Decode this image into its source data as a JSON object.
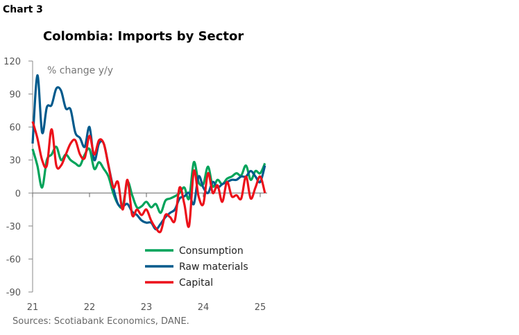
{
  "header": {
    "chart_label": "Chart 3"
  },
  "footer": {
    "source": "Sources: Scotiabank Economics, DANE."
  },
  "chart_data": {
    "type": "line",
    "title": "Colombia: Imports by Sector",
    "ylabel": "% change y/y",
    "xlabel": "",
    "ylim": [
      -90,
      120
    ],
    "yticks": [
      120,
      90,
      60,
      30,
      0,
      -30,
      -60,
      -90
    ],
    "ytick_labels": [
      "120",
      "90",
      "60",
      "30",
      "0",
      "-30",
      "-60",
      "-90"
    ],
    "xticks": [
      "21",
      "22",
      "23",
      "24",
      "25"
    ],
    "x_start": "Jan 2021",
    "x_frequency": "monthly",
    "legend_position": "bottom-center",
    "series": [
      {
        "name": "Consumption",
        "color": "#00a35a",
        "values": [
          40,
          25,
          5,
          30,
          35,
          42,
          30,
          35,
          30,
          27,
          25,
          35,
          40,
          22,
          28,
          22,
          15,
          0,
          -10,
          -12,
          10,
          -2,
          -13,
          -12,
          -8,
          -13,
          -10,
          -18,
          -7,
          -5,
          -3,
          0,
          5,
          -5,
          28,
          10,
          8,
          24,
          6,
          12,
          8,
          13,
          15,
          18,
          16,
          25,
          12,
          20,
          18,
          27
        ]
      },
      {
        "name": "Raw materials",
        "color": "#005a8c",
        "values": [
          45,
          107,
          55,
          78,
          80,
          95,
          93,
          77,
          76,
          55,
          50,
          42,
          60,
          30,
          45,
          45,
          25,
          5,
          -10,
          -12,
          -10,
          -17,
          -20,
          -25,
          -27,
          -27,
          -33,
          -28,
          -22,
          -18,
          -15,
          -5,
          -3,
          0,
          -10,
          15,
          5,
          0,
          10,
          5,
          8,
          10,
          12,
          12,
          15,
          15,
          20,
          15,
          10,
          25
        ]
      },
      {
        "name": "Capital",
        "color": "#ec111a",
        "values": [
          65,
          50,
          30,
          25,
          58,
          25,
          25,
          35,
          45,
          48,
          35,
          32,
          52,
          35,
          48,
          45,
          25,
          5,
          10,
          -15,
          12,
          -20,
          -15,
          -20,
          -15,
          -25,
          -32,
          -35,
          -20,
          -22,
          -25,
          5,
          -10,
          -30,
          20,
          -3,
          -10,
          18,
          0,
          7,
          -8,
          10,
          -3,
          -2,
          -5,
          15,
          -5,
          5,
          15,
          0
        ]
      }
    ]
  }
}
